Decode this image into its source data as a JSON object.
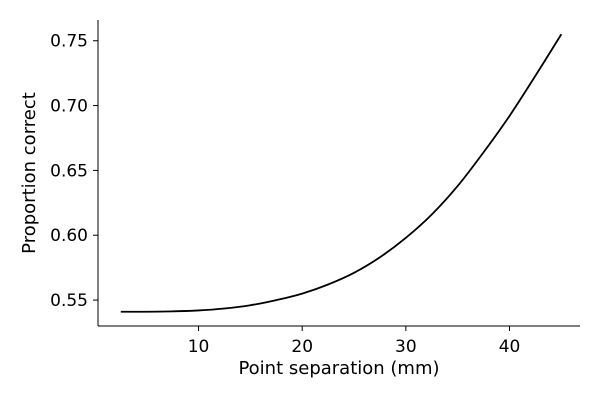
{
  "chart_data": {
    "type": "line",
    "xlabel": "Point separation (mm)",
    "ylabel": "Proportion correct",
    "xlim": [
      0.3,
      46.8
    ],
    "ylim": [
      0.53,
      0.766
    ],
    "xticks": [
      10,
      20,
      30,
      40
    ],
    "yticks": [
      0.55,
      0.6,
      0.65,
      0.7,
      0.75
    ],
    "xtick_labels": [
      "10",
      "20",
      "30",
      "40"
    ],
    "ytick_labels": [
      "0.55",
      "0.60",
      "0.65",
      "0.70",
      "0.75"
    ],
    "grid": false,
    "line_color": "#000000",
    "series": [
      {
        "x": [
          2.5,
          5,
          7.5,
          10,
          12.5,
          15,
          17.5,
          20,
          22.5,
          25,
          27.5,
          30,
          32.5,
          35,
          37.5,
          40,
          42.5,
          45
        ],
        "values": [
          0.541,
          0.541,
          0.5413,
          0.542,
          0.5435,
          0.546,
          0.55,
          0.555,
          0.562,
          0.571,
          0.583,
          0.598,
          0.616,
          0.638,
          0.664,
          0.692,
          0.723,
          0.755
        ]
      }
    ]
  }
}
